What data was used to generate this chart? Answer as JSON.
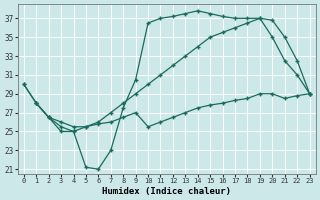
{
  "xlabel": "Humidex (Indice chaleur)",
  "background_color": "#cce8e8",
  "grid_color": "#ffffff",
  "line_color": "#1a6b5a",
  "ylim": [
    20.5,
    38.5
  ],
  "xlim": [
    -0.5,
    23.5
  ],
  "yticks": [
    21,
    23,
    25,
    27,
    29,
    31,
    33,
    35,
    37
  ],
  "xticks": [
    0,
    1,
    2,
    3,
    4,
    5,
    6,
    7,
    8,
    9,
    10,
    11,
    12,
    13,
    14,
    15,
    16,
    17,
    18,
    19,
    20,
    21,
    22,
    23
  ],
  "line1_x": [
    0,
    1,
    2,
    3,
    4,
    5,
    6,
    7,
    8,
    9,
    10,
    11,
    12,
    13,
    14,
    15,
    16,
    17,
    18,
    19,
    20,
    21,
    22,
    23
  ],
  "line1_y": [
    30.0,
    28.0,
    26.5,
    25.0,
    25.0,
    21.2,
    21.0,
    23.0,
    27.5,
    30.5,
    36.5,
    37.0,
    37.2,
    37.5,
    37.8,
    37.5,
    37.2,
    37.0,
    37.0,
    37.0,
    36.8,
    35.0,
    32.5,
    29.0
  ],
  "line2_x": [
    0,
    1,
    2,
    3,
    4,
    5,
    6,
    7,
    8,
    9,
    10,
    11,
    12,
    13,
    14,
    15,
    16,
    17,
    18,
    19,
    20,
    21,
    22,
    23
  ],
  "line2_y": [
    30.0,
    28.0,
    26.5,
    25.5,
    25.0,
    25.5,
    26.0,
    27.0,
    28.0,
    29.0,
    30.0,
    31.0,
    32.0,
    33.0,
    34.0,
    35.0,
    35.5,
    36.0,
    36.5,
    37.0,
    35.0,
    32.5,
    31.0,
    29.0
  ],
  "line3_x": [
    1,
    2,
    3,
    4,
    5,
    6,
    7,
    8,
    9,
    10,
    11,
    12,
    13,
    14,
    15,
    16,
    17,
    18,
    19,
    20,
    21,
    22,
    23
  ],
  "line3_y": [
    28.0,
    26.5,
    26.0,
    25.5,
    25.5,
    25.8,
    26.0,
    26.5,
    27.0,
    25.5,
    26.0,
    26.5,
    27.0,
    27.5,
    27.8,
    28.0,
    28.3,
    28.5,
    29.0,
    29.0,
    28.5,
    28.8,
    29.0
  ]
}
